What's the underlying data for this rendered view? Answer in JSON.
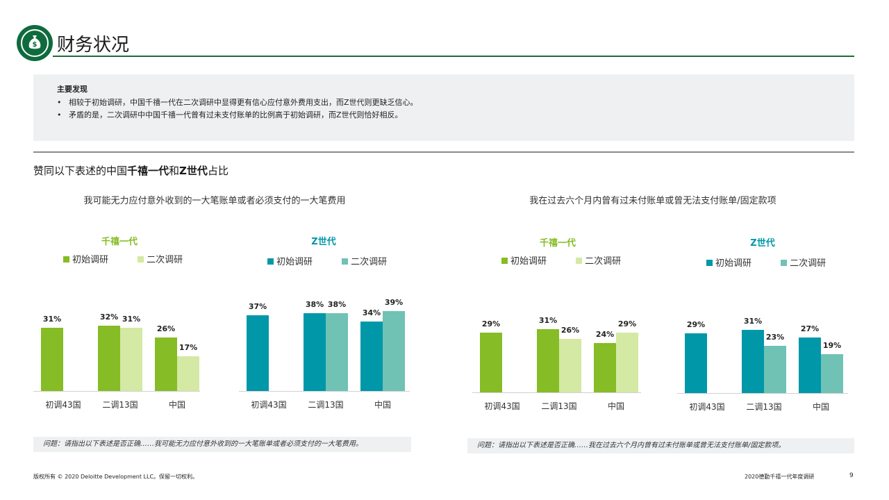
{
  "header": {
    "title": "财务状况",
    "logo_icon": "money-bag-icon"
  },
  "findings": {
    "heading": "主要发现",
    "items": [
      "相较于初始调研，中国千禧一代在二次调研中显得更有信心应付意外费用支出，而Z世代则更缺乏信心。",
      "矛盾的是，二次调研中中国千禧一代曾有过未支付账单的比例高于初始调研，而Z世代则恰好相反。"
    ]
  },
  "section": {
    "prefix": "赞同以下表述的中国",
    "bold1": "千禧一代",
    "mid": "和",
    "bold2": "Z世代",
    "suffix": "占比"
  },
  "colors": {
    "mil_initial": "#86bc25",
    "mil_second": "#d4e9a3",
    "z_initial": "#0097a9",
    "z_second": "#6fc2b4",
    "mil_title": "#86bc25",
    "z_title": "#0097a9"
  },
  "chart_data": [
    {
      "type": "bar",
      "title": "我可能无力应付意外收到的一大笔账单或者必须支付的一大笔费用",
      "panels": [
        {
          "name": "千禧一代",
          "categories": [
            "初调43国",
            "二调13国",
            "中国"
          ],
          "series": [
            {
              "name": "初始调研",
              "values": [
                31,
                32,
                26
              ]
            },
            {
              "name": "二次调研",
              "values": [
                null,
                31,
                17
              ]
            }
          ]
        },
        {
          "name": "Z世代",
          "categories": [
            "初调43国",
            "二调13国",
            "中国"
          ],
          "series": [
            {
              "name": "初始调研",
              "values": [
                37,
                38,
                34
              ]
            },
            {
              "name": "二次调研",
              "values": [
                null,
                38,
                39
              ]
            }
          ]
        }
      ],
      "question": "问题：请指出以下表述是否正确……我可能无力应付意外收到的一大笔账单或者必须支付的一大笔费用。"
    },
    {
      "type": "bar",
      "title": "我在过去六个月内曾有过未付账单或曾无法支付账单/固定款项",
      "panels": [
        {
          "name": "千禧一代",
          "categories": [
            "初调43国",
            "二调13国",
            "中国"
          ],
          "series": [
            {
              "name": "初始调研",
              "values": [
                29,
                31,
                24
              ]
            },
            {
              "name": "二次调研",
              "values": [
                null,
                26,
                29
              ]
            }
          ]
        },
        {
          "name": "Z世代",
          "categories": [
            "初调43国",
            "二调13国",
            "中国"
          ],
          "series": [
            {
              "name": "初始调研",
              "values": [
                29,
                31,
                27
              ]
            },
            {
              "name": "二次调研",
              "values": [
                null,
                23,
                19
              ]
            }
          ]
        }
      ],
      "question": "问题：请指出以下表述是否正确……我在过去六个月内曾有过未付账单或曾无法支付账单/固定款项。"
    }
  ],
  "footer": {
    "copyright": "版权所有 © 2020 Deloitte Development LLC。保留一切权利。",
    "report": "2020德勤千禧一代年度调研",
    "page": "9"
  }
}
